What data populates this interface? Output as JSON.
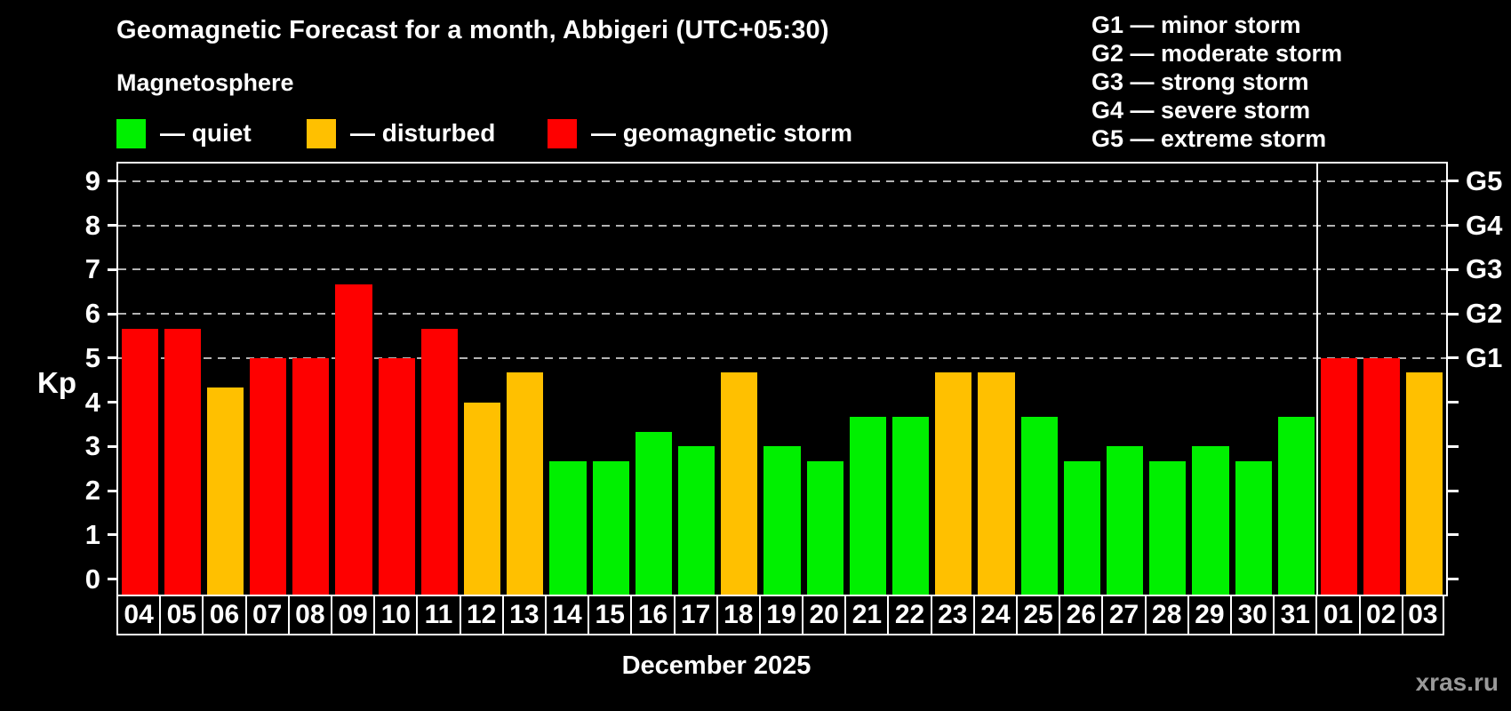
{
  "title": "Geomagnetic Forecast for a month, Abbigeri (UTC+05:30)",
  "subtitle": "Magnetosphere",
  "legend": {
    "items": [
      {
        "key": "quiet",
        "label": "— quiet"
      },
      {
        "key": "disturbed",
        "label": "— disturbed"
      },
      {
        "key": "storm",
        "label": "— geomagnetic storm"
      }
    ]
  },
  "legend_right": {
    "items": [
      "G1 — minor storm",
      "G2 — moderate storm",
      "G3 — strong storm",
      "G4 — severe storm",
      "G5 — extreme storm"
    ]
  },
  "colors": {
    "quiet": "#00f000",
    "disturbed": "#ffc000",
    "storm": "#fe0000",
    "grid": "#b3b3b3",
    "frame": "#ffffff",
    "watermark": "#999999"
  },
  "watermark": "xras.ru",
  "chart_data": {
    "type": "bar",
    "title": "Geomagnetic Forecast for a month, Abbigeri (UTC+05:30)",
    "subtitle": "Magnetosphere",
    "ylabel": "Kp",
    "x_title": "December 2025",
    "ylim": [
      -0.35,
      9.4
    ],
    "y_ticks": [
      0,
      1,
      2,
      3,
      4,
      5,
      6,
      7,
      8,
      9
    ],
    "gridlines_kp": [
      5,
      6,
      7,
      8,
      9
    ],
    "grid": "dashed horizontal at Kp 5-9 only",
    "legend_position": "top",
    "right_axis": [
      {
        "kp": 5,
        "label": "G1"
      },
      {
        "kp": 6,
        "label": "G2"
      },
      {
        "kp": 7,
        "label": "G3"
      },
      {
        "kp": 8,
        "label": "G4"
      },
      {
        "kp": 9,
        "label": "G5"
      }
    ],
    "categories": [
      "04",
      "05",
      "06",
      "07",
      "08",
      "09",
      "10",
      "11",
      "12",
      "13",
      "14",
      "15",
      "16",
      "17",
      "18",
      "19",
      "20",
      "21",
      "22",
      "23",
      "24",
      "25",
      "26",
      "27",
      "28",
      "29",
      "30",
      "31",
      "01",
      "02",
      "03"
    ],
    "values": [
      5.67,
      5.67,
      4.33,
      5.0,
      5.0,
      6.67,
      5.0,
      5.67,
      4.0,
      4.67,
      2.67,
      2.67,
      3.33,
      3.0,
      4.67,
      3.0,
      2.67,
      3.67,
      3.67,
      4.67,
      4.67,
      3.67,
      2.67,
      3.0,
      2.67,
      3.0,
      2.67,
      3.67,
      5.0,
      5.0,
      4.67
    ],
    "statuses": [
      "storm",
      "storm",
      "disturbed",
      "storm",
      "storm",
      "storm",
      "storm",
      "storm",
      "disturbed",
      "disturbed",
      "quiet",
      "quiet",
      "quiet",
      "quiet",
      "disturbed",
      "quiet",
      "quiet",
      "quiet",
      "quiet",
      "disturbed",
      "disturbed",
      "quiet",
      "quiet",
      "quiet",
      "quiet",
      "quiet",
      "quiet",
      "quiet",
      "storm",
      "storm",
      "disturbed"
    ],
    "month_separator_after_index": 27
  }
}
